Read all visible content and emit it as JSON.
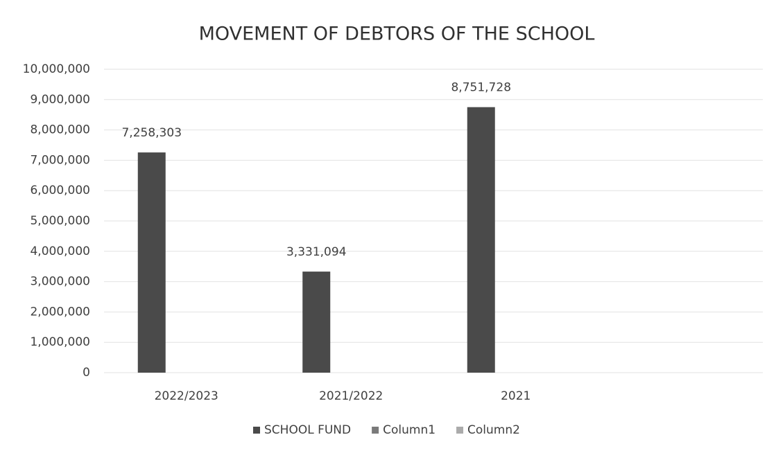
{
  "chart_data": {
    "type": "bar",
    "title": "MOVEMENT OF DEBTORS OF THE SCHOOL",
    "categories": [
      "2022/2023",
      "2021/2022",
      "2021",
      null
    ],
    "series": [
      {
        "name": "SCHOOL FUND",
        "color": "#4a4a4a",
        "values": [
          7258303,
          3331094,
          8751728,
          null
        ],
        "value_labels": [
          "7,258,303",
          "3,331,094",
          "8,751,728",
          null
        ]
      },
      {
        "name": "Column1",
        "color": "#7a7a7a",
        "values": [
          null,
          null,
          null,
          null
        ]
      },
      {
        "name": "Column2",
        "color": "#ababab",
        "values": [
          null,
          null,
          null,
          null
        ]
      }
    ],
    "ylim": [
      0,
      10000000
    ],
    "yticks": [
      0,
      {
        "value": 1000000,
        "label": "1,000,000"
      },
      {
        "value": 2000000,
        "label": "2,000,000"
      },
      {
        "value": 3000000,
        "label": "3,000,000"
      },
      {
        "value": 4000000,
        "label": "4,000,000"
      },
      {
        "value": 5000000,
        "label": "5,000,000"
      },
      {
        "value": 6000000,
        "label": "6,000,000"
      },
      {
        "value": 7000000,
        "label": "7,000,000"
      },
      {
        "value": 8000000,
        "label": "8,000,000"
      },
      {
        "value": 9000000,
        "label": "9,000,000"
      },
      {
        "value": 10000000,
        "label": "10,000,000"
      }
    ],
    "grid": true,
    "legend": "bottom"
  }
}
